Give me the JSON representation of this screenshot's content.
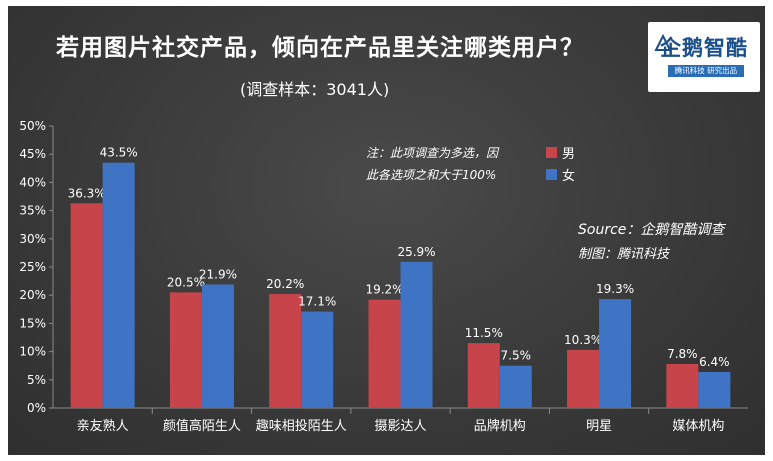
{
  "title": "若用图片社交产品，倾向在产品里关注哪类用户？",
  "subtitle": "(调查样本：3041人)",
  "logo": {
    "name": "企鹅智酷",
    "tagline": "腾讯科技  研究出品"
  },
  "note": {
    "line1": "注：此项调查为多选，因",
    "line2": "此各选项之和大于100%"
  },
  "source": {
    "line1": "Source：企鹅智酷调查",
    "line2": "制图：腾讯科技"
  },
  "colors": {
    "male": "#c7444a",
    "female": "#3f74c4",
    "text": "#ffffff",
    "grid": "#6a6a6a"
  },
  "chart_data": {
    "type": "bar",
    "categories": [
      "亲友熟人",
      "颜值高陌生人",
      "趣味相投陌生人",
      "摄影达人",
      "品牌机构",
      "明星",
      "媒体机构"
    ],
    "series": [
      {
        "name": "男",
        "values": [
          36.3,
          20.5,
          20.2,
          19.2,
          11.5,
          10.3,
          7.8
        ]
      },
      {
        "name": "女",
        "values": [
          43.5,
          21.9,
          17.1,
          25.9,
          7.5,
          19.3,
          6.4
        ]
      }
    ],
    "ylim": [
      0,
      50
    ],
    "yticks": [
      0,
      5,
      10,
      15,
      20,
      25,
      30,
      35,
      40,
      45,
      50
    ],
    "ytick_labels": [
      "0%",
      "5%",
      "10%",
      "15%",
      "20%",
      "25%",
      "30%",
      "35%",
      "40%",
      "45%",
      "50%"
    ],
    "data_labels": [
      [
        "36.3%",
        "20.5%",
        "20.2%",
        "19.2%",
        "11.5%",
        "10.3%",
        "7.8%"
      ],
      [
        "43.5%",
        "21.9%",
        "17.1%",
        "25.9%",
        "7.5%",
        "19.3%",
        "6.4%"
      ]
    ],
    "legend_position": "top-right",
    "grid": false
  }
}
